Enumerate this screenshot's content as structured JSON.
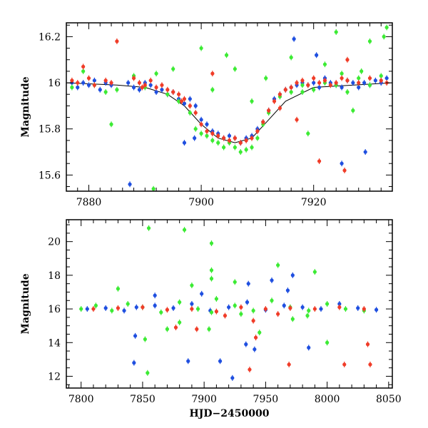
{
  "chart_data": [
    {
      "type": "scatter",
      "panel": "top",
      "xlabel": "",
      "ylabel": "Magnitude",
      "xlim": [
        7876,
        7934
      ],
      "ylim": [
        16.26,
        15.53
      ],
      "y_inverted": true,
      "xticks": [
        7880,
        7900,
        7920
      ],
      "yticks": [
        15.6,
        15.8,
        16.0,
        16.2
      ],
      "ytick_labels": [
        "15.6",
        "15.8",
        "16",
        "16.2"
      ],
      "model_curve": {
        "x": [
          7876,
          7885,
          7890,
          7894,
          7897,
          7900,
          7903,
          7906,
          7909,
          7912,
          7915,
          7920,
          7934
        ],
        "y": [
          16.0,
          15.99,
          15.98,
          15.95,
          15.9,
          15.82,
          15.76,
          15.74,
          15.76,
          15.84,
          15.92,
          15.98,
          16.0
        ]
      },
      "series": [
        {
          "color": "#1f4fe0",
          "x": [
            7877,
            7878,
            7879,
            7880,
            7881,
            7882,
            7883,
            7884,
            7887,
            7888,
            7889,
            7890,
            7891,
            7892,
            7893,
            7894,
            7895,
            7896,
            7897,
            7898,
            7899,
            7900,
            7901,
            7902,
            7903,
            7904,
            7905,
            7906,
            7907,
            7908,
            7909,
            7910,
            7911,
            7912,
            7913,
            7914,
            7915,
            7916,
            7917,
            7918,
            7919,
            7920,
            7921,
            7922,
            7923,
            7924,
            7925,
            7926,
            7927,
            7928,
            7929,
            7930,
            7931,
            7932,
            7933,
            7887.3,
            7897,
            7898.8,
            7925,
            7929.2,
            7916.5,
            7920.5
          ],
          "y": [
            16.0,
            15.98,
            16.0,
            15.99,
            16.01,
            15.97,
            16.0,
            15.99,
            16.0,
            15.98,
            15.97,
            16.0,
            15.99,
            15.96,
            15.97,
            15.95,
            15.96,
            15.93,
            15.91,
            15.93,
            15.9,
            15.84,
            15.82,
            15.79,
            15.78,
            15.76,
            15.77,
            15.76,
            15.74,
            15.76,
            15.77,
            15.8,
            15.83,
            15.88,
            15.93,
            15.95,
            15.97,
            15.98,
            15.99,
            16.0,
            15.99,
            16.0,
            15.98,
            16.02,
            16.0,
            15.99,
            15.98,
            16.01,
            16.0,
            15.98,
            16.0,
            15.99,
            16.01,
            16.0,
            16.02,
            15.56,
            15.74,
            15.76,
            15.65,
            15.7,
            16.19,
            16.12
          ]
        },
        {
          "color": "#3ceb34",
          "x": [
            7877,
            7879,
            7881,
            7883,
            7885,
            7888,
            7890,
            7892,
            7894,
            7896,
            7898,
            7899,
            7900,
            7901,
            7902,
            7903,
            7904,
            7905,
            7906,
            7907,
            7908,
            7909,
            7910,
            7911,
            7912,
            7914,
            7916,
            7918,
            7920,
            7922,
            7924,
            7926,
            7928,
            7930,
            7932,
            7891.5,
            7884,
            7902,
            7906,
            7909,
            7911.5,
            7916,
            7919,
            7922,
            7925,
            7927,
            7930,
            7932.5,
            7895,
            7900,
            7904.5,
            7918,
            7924,
            7928.5,
            7933
          ],
          "y": [
            15.98,
            16.05,
            15.99,
            15.96,
            15.97,
            16.03,
            15.98,
            16.04,
            15.95,
            15.92,
            15.87,
            15.8,
            15.78,
            15.77,
            15.75,
            15.74,
            15.72,
            15.74,
            15.72,
            15.7,
            15.71,
            15.72,
            15.76,
            15.82,
            15.87,
            15.94,
            15.96,
            15.99,
            15.97,
            16.0,
            15.99,
            15.96,
            16.02,
            15.99,
            16.03,
            15.54,
            15.82,
            15.97,
            16.06,
            15.92,
            16.02,
            16.11,
            15.78,
            16.08,
            16.04,
            15.88,
            16.18,
            16.2,
            16.06,
            16.15,
            16.12,
            15.96,
            16.22,
            16.05,
            16.24
          ]
        },
        {
          "color": "#f03c28",
          "x": [
            7877,
            7878,
            7880,
            7881,
            7883,
            7884,
            7888,
            7889,
            7890,
            7891,
            7892,
            7893,
            7894,
            7895,
            7896,
            7897,
            7898,
            7899,
            7900,
            7901,
            7902,
            7903,
            7904,
            7905,
            7906,
            7907,
            7908,
            7909,
            7910,
            7911,
            7912,
            7913,
            7914,
            7915,
            7916,
            7917,
            7918,
            7919,
            7920,
            7921,
            7922,
            7923,
            7924,
            7925,
            7926,
            7928,
            7930,
            7932,
            7933,
            7879,
            7885,
            7889.5,
            7896.5,
            7914,
            7917,
            7921,
            7925.5,
            7926,
            7902
          ],
          "y": [
            16.01,
            16.0,
            16.02,
            15.99,
            16.01,
            16.0,
            16.02,
            16.0,
            15.99,
            16.01,
            15.98,
            15.99,
            15.97,
            15.96,
            15.95,
            15.93,
            15.9,
            15.87,
            15.82,
            15.79,
            15.78,
            15.77,
            15.76,
            15.75,
            15.76,
            15.74,
            15.75,
            15.76,
            15.79,
            15.83,
            15.88,
            15.92,
            15.95,
            15.97,
            15.98,
            16.0,
            16.01,
            15.99,
            16.02,
            16.0,
            16.01,
            15.99,
            16.0,
            16.02,
            16.01,
            16.0,
            16.02,
            16.01,
            16.0,
            16.07,
            16.18,
            15.98,
            15.92,
            15.89,
            15.84,
            15.66,
            15.62,
            16.1,
            16.04
          ]
        }
      ]
    },
    {
      "type": "scatter",
      "panel": "bottom",
      "xlabel": "HJD−2450000",
      "ylabel": "Magnitude",
      "xlim": [
        7788,
        8053
      ],
      "ylim": [
        21.3,
        11.3
      ],
      "y_inverted": true,
      "xticks": [
        7800,
        7850,
        7900,
        7950,
        8000,
        8050
      ],
      "yticks": [
        12,
        14,
        16,
        18,
        20
      ],
      "series": [
        {
          "color": "#1f4fe0",
          "x": [
            7805,
            7820,
            7835,
            7845,
            7860,
            7875,
            7890,
            7905,
            7920,
            7935,
            7950,
            7965,
            7980,
            7995,
            8010,
            8025,
            8040,
            7843,
            7844,
            7887,
            7913,
            7923,
            7934,
            7941,
            7985,
            7972,
            7936,
            7968,
            7860,
            7898,
            7955
          ],
          "y": [
            16.0,
            16.05,
            15.9,
            16.1,
            16.2,
            16.05,
            16.3,
            15.9,
            16.1,
            16.4,
            15.95,
            16.2,
            16.1,
            16.0,
            16.3,
            16.05,
            15.95,
            12.8,
            14.4,
            12.9,
            12.9,
            11.9,
            13.9,
            13.6,
            13.7,
            18.0,
            17.5,
            17.1,
            16.8,
            16.9,
            17.7
          ]
        },
        {
          "color": "#3ceb34",
          "x": [
            7800,
            7812,
            7825,
            7838,
            7850,
            7865,
            7880,
            7895,
            7910,
            7925,
            7940,
            7955,
            7970,
            7985,
            8000,
            8015,
            8030,
            7854,
            7852,
            7870,
            7880,
            7904,
            7906,
            7930,
            7945,
            7972,
            7984,
            8000,
            7855,
            7884,
            7906,
            7906,
            7906,
            7830,
            7890,
            7925,
            7960,
            7990
          ],
          "y": [
            16.0,
            16.2,
            15.9,
            16.3,
            16.1,
            15.8,
            16.4,
            16.0,
            16.6,
            16.2,
            15.9,
            16.5,
            16.1,
            15.9,
            16.3,
            16.0,
            15.9,
            12.2,
            14.2,
            14.8,
            15.2,
            14.8,
            15.8,
            15.7,
            14.6,
            15.4,
            15.6,
            14.0,
            20.8,
            20.7,
            19.9,
            18.3,
            17.8,
            17.2,
            17.4,
            17.6,
            18.6,
            18.2
          ]
        },
        {
          "color": "#f03c28",
          "x": [
            7810,
            7830,
            7850,
            7870,
            7890,
            7910,
            7930,
            7950,
            7970,
            7990,
            8010,
            8030,
            7877,
            7894,
            7937,
            7942,
            7969,
            8014,
            8035,
            8033,
            7917,
            7940,
            7960
          ],
          "y": [
            16.0,
            16.05,
            16.1,
            15.95,
            16.0,
            15.85,
            16.1,
            16.0,
            16.05,
            16.0,
            16.1,
            16.0,
            14.9,
            14.8,
            12.4,
            14.3,
            12.7,
            12.7,
            12.7,
            13.9,
            15.6,
            15.3,
            15.7
          ]
        }
      ]
    }
  ]
}
